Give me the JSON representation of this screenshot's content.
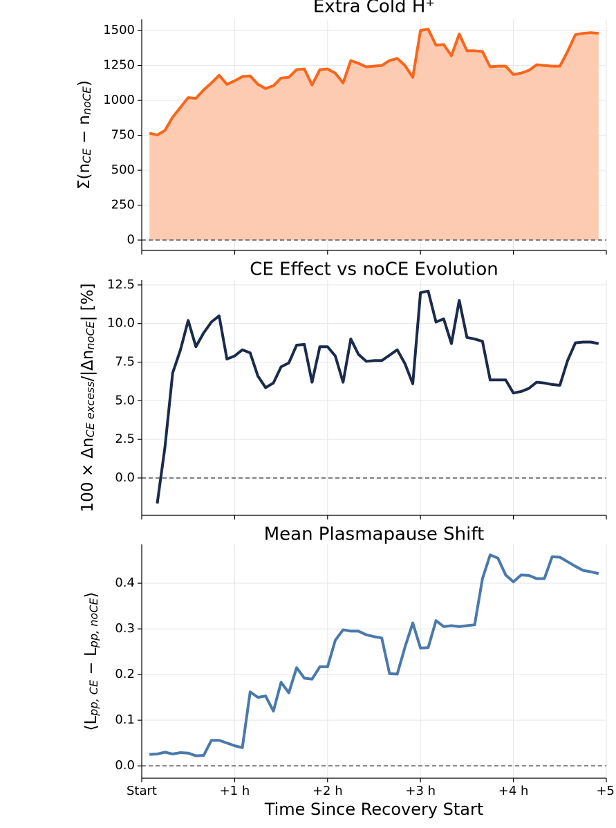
{
  "chart_data": [
    {
      "type": "area",
      "title": "Extra Cold H⁺",
      "ylabel": [
        {
          "t": "Σ(n"
        },
        {
          "t": "CE",
          "sub": true
        },
        {
          "t": " − n"
        },
        {
          "t": "noCE",
          "sub": true
        },
        {
          "t": ")"
        }
      ],
      "x": [
        0.083,
        0.167,
        0.25,
        0.333,
        0.417,
        0.5,
        0.583,
        0.667,
        0.75,
        0.833,
        0.917,
        1,
        1.083,
        1.167,
        1.25,
        1.333,
        1.417,
        1.5,
        1.583,
        1.667,
        1.75,
        1.833,
        1.917,
        2,
        2.083,
        2.167,
        2.25,
        2.333,
        2.417,
        2.5,
        2.583,
        2.667,
        2.75,
        2.833,
        2.917,
        3,
        3.083,
        3.167,
        3.25,
        3.333,
        3.417,
        3.5,
        3.583,
        3.667,
        3.75,
        3.833,
        3.917,
        4,
        4.083,
        4.167,
        4.25,
        4.333,
        4.417,
        4.5,
        4.583,
        4.667,
        4.75,
        4.833,
        4.917
      ],
      "series": [
        {
          "color": "#f8661b",
          "fill_color": "#fdcbb1",
          "values": [
            765,
            752,
            785,
            880,
            950,
            1020,
            1015,
            1075,
            1125,
            1180,
            1115,
            1140,
            1170,
            1175,
            1115,
            1085,
            1105,
            1160,
            1165,
            1220,
            1225,
            1110,
            1220,
            1225,
            1195,
            1125,
            1285,
            1265,
            1240,
            1245,
            1250,
            1285,
            1300,
            1250,
            1165,
            1500,
            1510,
            1395,
            1400,
            1320,
            1475,
            1355,
            1355,
            1350,
            1240,
            1245,
            1245,
            1185,
            1195,
            1215,
            1255,
            1250,
            1245,
            1245,
            1350,
            1470,
            1480,
            1485,
            1480
          ]
        }
      ],
      "xlim": [
        0,
        5
      ],
      "xticks": [
        0,
        1,
        2,
        3,
        4,
        5
      ],
      "ylim": [
        -74,
        1580
      ],
      "yticks": [
        0,
        250,
        500,
        750,
        1000,
        1250,
        1500
      ],
      "reference_line": 0,
      "grid": true
    },
    {
      "type": "line",
      "title": "CE Effect vs noCE Evolution",
      "ylabel": [
        {
          "t": "100 × Δn"
        },
        {
          "t": "CE excess",
          "sub": true
        },
        {
          "t": "/|Δn"
        },
        {
          "t": "noCE",
          "sub": true
        },
        {
          "t": "| [%]"
        }
      ],
      "x": [
        0.083,
        0.167,
        0.25,
        0.333,
        0.417,
        0.5,
        0.583,
        0.667,
        0.75,
        0.833,
        0.917,
        1,
        1.083,
        1.167,
        1.25,
        1.333,
        1.417,
        1.5,
        1.583,
        1.667,
        1.75,
        1.833,
        1.917,
        2,
        2.083,
        2.167,
        2.25,
        2.333,
        2.417,
        2.5,
        2.583,
        2.667,
        2.75,
        2.833,
        2.917,
        3,
        3.083,
        3.167,
        3.25,
        3.333,
        3.417,
        3.5,
        3.583,
        3.667,
        3.75,
        3.833,
        3.917,
        4,
        4.083,
        4.167,
        4.25,
        4.333,
        4.417,
        4.5,
        4.583,
        4.667,
        4.75,
        4.833,
        4.917
      ],
      "series": [
        {
          "color": "#1a2b4c",
          "values": [
            null,
            -1.65,
            2.0,
            6.8,
            8.3,
            10.2,
            8.5,
            9.4,
            10.1,
            10.5,
            7.7,
            7.9,
            8.3,
            8.1,
            6.6,
            5.85,
            6.15,
            7.2,
            7.45,
            8.6,
            8.65,
            6.2,
            8.5,
            8.5,
            7.9,
            6.2,
            9.0,
            8.0,
            7.55,
            7.6,
            7.6,
            7.95,
            8.3,
            7.4,
            6.1,
            12.0,
            12.1,
            10.1,
            10.3,
            8.7,
            11.5,
            9.1,
            9.0,
            8.85,
            6.35,
            6.35,
            6.35,
            5.5,
            5.6,
            5.8,
            6.2,
            6.15,
            6.05,
            6.0,
            7.6,
            8.75,
            8.8,
            8.8,
            8.7
          ]
        }
      ],
      "xlim": [
        0,
        5
      ],
      "xticks": [
        0,
        1,
        2,
        3,
        4,
        5
      ],
      "ylim": [
        -2.42,
        12.81
      ],
      "yticks": [
        {
          "value": 0,
          "label": "0.0"
        },
        2.5,
        {
          "value": 5,
          "label": "5.0"
        },
        7.5,
        {
          "value": 10,
          "label": "10.0"
        },
        12.5
      ],
      "reference_line": 0,
      "grid": true
    },
    {
      "type": "line",
      "title": "Mean Plasmapause Shift",
      "ylabel": [
        {
          "t": "⟨L"
        },
        {
          "t": "pp, CE",
          "sub": true
        },
        {
          "t": " − L"
        },
        {
          "t": "pp, noCE",
          "sub": true
        },
        {
          "t": "⟩"
        }
      ],
      "xlabel": "Time Since Recovery Start",
      "x": [
        0.083,
        0.167,
        0.25,
        0.333,
        0.417,
        0.5,
        0.583,
        0.667,
        0.75,
        0.833,
        0.917,
        1,
        1.083,
        1.167,
        1.25,
        1.333,
        1.417,
        1.5,
        1.583,
        1.667,
        1.75,
        1.833,
        1.917,
        2,
        2.083,
        2.167,
        2.25,
        2.333,
        2.417,
        2.5,
        2.583,
        2.667,
        2.75,
        2.833,
        2.917,
        3,
        3.083,
        3.167,
        3.25,
        3.333,
        3.417,
        3.5,
        3.583,
        3.667,
        3.75,
        3.833,
        3.917,
        4,
        4.083,
        4.167,
        4.25,
        4.333,
        4.417,
        4.5,
        4.583,
        4.667,
        4.75,
        4.833,
        4.917
      ],
      "series": [
        {
          "color": "#4a79ab",
          "values": [
            0.025,
            0.026,
            0.03,
            0.026,
            0.029,
            0.028,
            0.022,
            0.023,
            0.056,
            0.056,
            0.05,
            0.044,
            0.04,
            0.162,
            0.15,
            0.153,
            0.12,
            0.183,
            0.16,
            0.215,
            0.192,
            0.19,
            0.217,
            0.217,
            0.275,
            0.298,
            0.295,
            0.295,
            0.287,
            0.283,
            0.28,
            0.202,
            0.201,
            0.26,
            0.313,
            0.258,
            0.259,
            0.318,
            0.305,
            0.307,
            0.305,
            0.307,
            0.309,
            0.41,
            0.462,
            0.455,
            0.418,
            0.403,
            0.418,
            0.417,
            0.41,
            0.41,
            0.458,
            0.457,
            0.447,
            0.437,
            0.428,
            0.425,
            0.421
          ]
        }
      ],
      "xlim": [
        0,
        5
      ],
      "xticks": [
        {
          "value": 0,
          "label": "Start"
        },
        {
          "value": 1,
          "label": "+1 h"
        },
        {
          "value": 2,
          "label": "+2 h"
        },
        {
          "value": 3,
          "label": "+3 h"
        },
        {
          "value": 4,
          "label": "+4 h"
        },
        {
          "value": 5,
          "label": "+5"
        }
      ],
      "ylim": [
        -0.027,
        0.485
      ],
      "yticks": [
        {
          "value": 0,
          "label": "0.0"
        },
        0.1,
        0.2,
        0.3,
        0.4
      ],
      "reference_line": 0,
      "grid": true
    }
  ]
}
